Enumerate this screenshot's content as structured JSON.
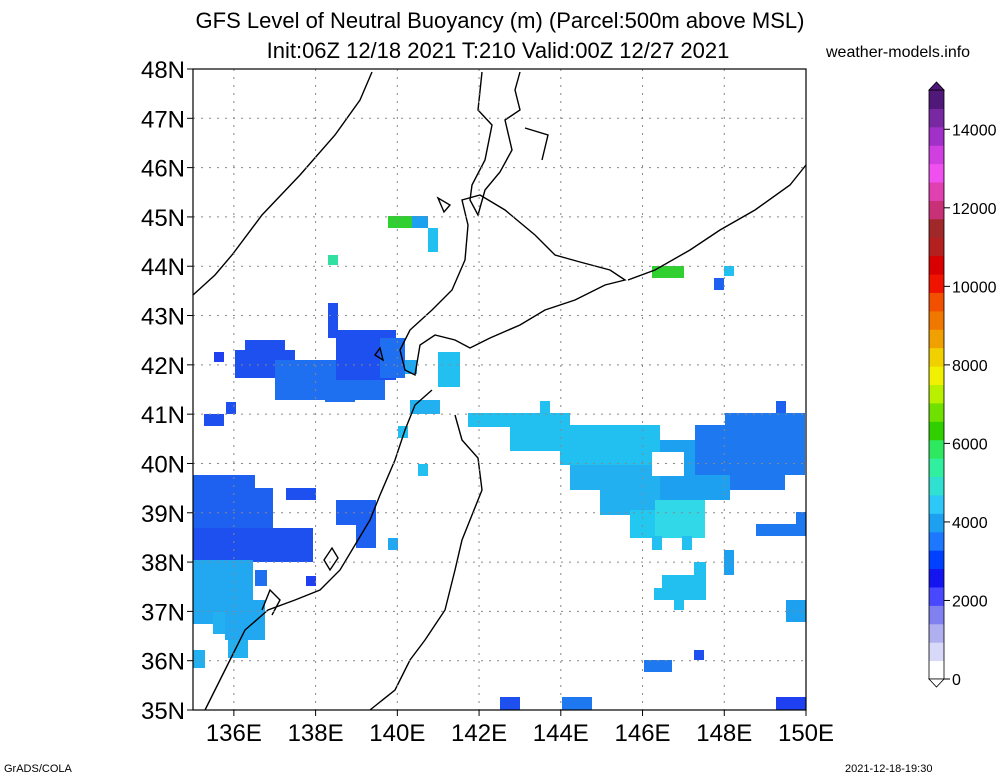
{
  "title": {
    "line1": "GFS Level of Neutral Buoyancy (m) (Parcel:500m above MSL)",
    "line2": "Init:06Z 12/18 2021 T:210 Valid:00Z 12/27 2021"
  },
  "brand": "weather-models.info",
  "footer": {
    "left": "GrADS/COLA",
    "right": "2021-12-18-19:30"
  },
  "map": {
    "lon_range": [
      135,
      150
    ],
    "lat_range": [
      35,
      48
    ],
    "lat_labels": [
      "35N",
      "36N",
      "37N",
      "38N",
      "39N",
      "40N",
      "41N",
      "42N",
      "43N",
      "44N",
      "45N",
      "46N",
      "47N",
      "48N"
    ],
    "lon_labels": [
      "136E",
      "138E",
      "140E",
      "142E",
      "144E",
      "146E",
      "148E",
      "150E"
    ]
  },
  "colorbar": {
    "labels": [
      "0",
      "2000",
      "4000",
      "6000",
      "8000",
      "10000",
      "12000",
      "14000"
    ],
    "colors": [
      "#ffffff",
      "#d8d8f8",
      "#b0b0f0",
      "#8080f0",
      "#4848ff",
      "#1414f0",
      "#0040ff",
      "#1e78ff",
      "#1ea0f0",
      "#2ec8f8",
      "#30e0d0",
      "#30f0a0",
      "#2ee860",
      "#30d000",
      "#70e000",
      "#b8f000",
      "#f0f000",
      "#f0d000",
      "#f0a000",
      "#f07800",
      "#f05000",
      "#f01400",
      "#d80000",
      "#b42020",
      "#a02828",
      "#c83078",
      "#e040b0",
      "#f050f0",
      "#d040e0",
      "#a030c8",
      "#7828a0",
      "#501878"
    ]
  }
}
